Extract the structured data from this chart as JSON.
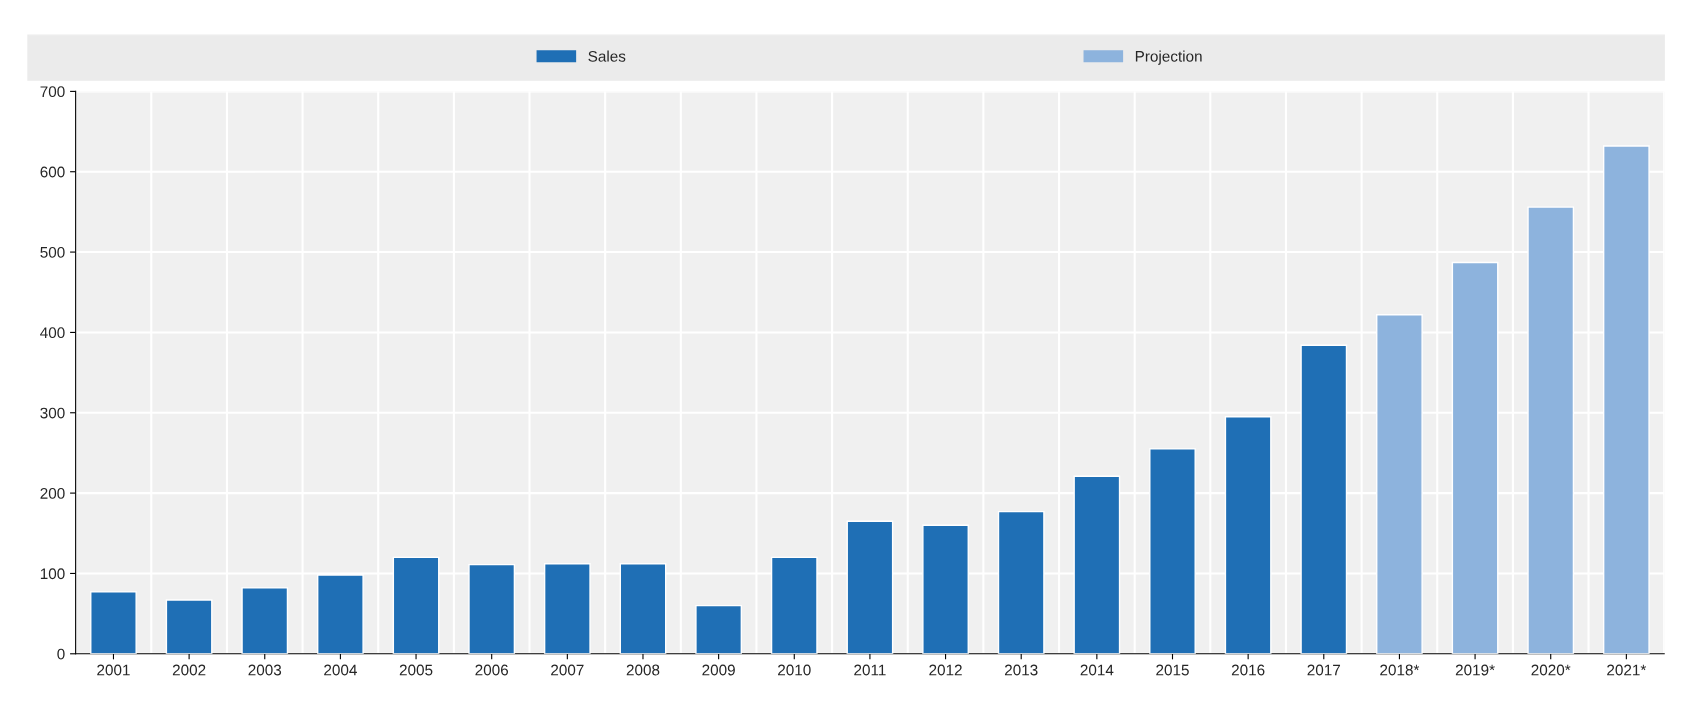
{
  "chart_data": {
    "type": "bar",
    "categories": [
      "2001",
      "2002",
      "2003",
      "2004",
      "2005",
      "2006",
      "2007",
      "2008",
      "2009",
      "2010",
      "2011",
      "2012",
      "2013",
      "2014",
      "2015",
      "2016",
      "2017",
      "2018*",
      "2019*",
      "2020*",
      "2021*"
    ],
    "series": [
      {
        "name": "Sales",
        "color": "#1f6fb5",
        "values": [
          77,
          67,
          82,
          98,
          120,
          111,
          112,
          112,
          60,
          120,
          165,
          160,
          177,
          221,
          255,
          295,
          384,
          null,
          null,
          null,
          null
        ]
      },
      {
        "name": "Projection",
        "color": "#8db3dd",
        "values": [
          null,
          null,
          null,
          null,
          null,
          null,
          null,
          null,
          null,
          null,
          null,
          null,
          null,
          null,
          null,
          null,
          null,
          422,
          487,
          556,
          632
        ]
      }
    ],
    "ylim": [
      0,
      700
    ],
    "yticks": [
      0,
      100,
      200,
      300,
      400,
      500,
      600,
      700
    ],
    "grid": true,
    "legend": "top"
  }
}
